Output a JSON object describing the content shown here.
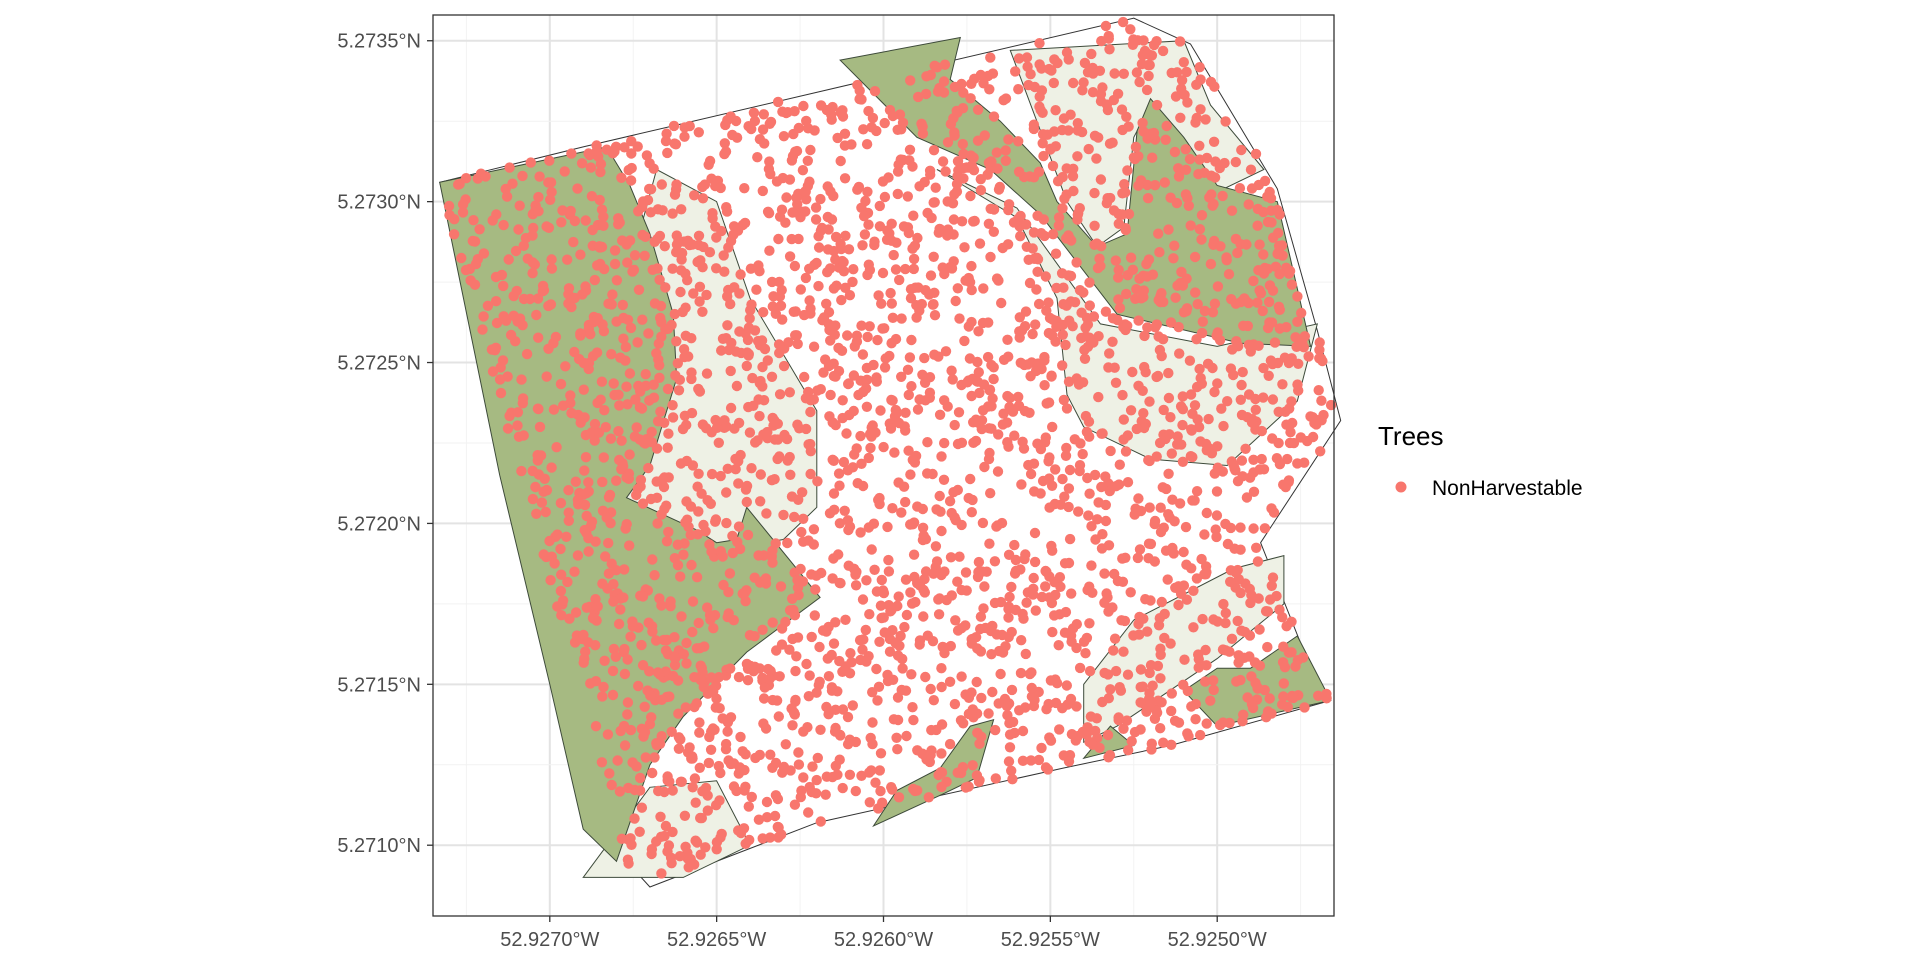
{
  "chart_data": {
    "type": "scatter",
    "title": "",
    "xlabel": "",
    "ylabel": "",
    "xlim": [
      -52.92735,
      -52.92465
    ],
    "ylim": [
      5.27078,
      5.27358
    ],
    "x_ticks": [
      {
        "value": -52.927,
        "label": "52.9270°W"
      },
      {
        "value": -52.9265,
        "label": "52.9265°W"
      },
      {
        "value": -52.926,
        "label": "52.9260°W"
      },
      {
        "value": -52.9255,
        "label": "52.9255°W"
      },
      {
        "value": -52.925,
        "label": "52.9250°W"
      }
    ],
    "y_ticks": [
      {
        "value": 5.271,
        "label": "5.2710°N"
      },
      {
        "value": 5.2715,
        "label": "5.2715°N"
      },
      {
        "value": 5.272,
        "label": "5.2720°N"
      },
      {
        "value": 5.2725,
        "label": "5.2725°N"
      },
      {
        "value": 5.273,
        "label": "5.2730°N"
      },
      {
        "value": 5.2735,
        "label": "5.2735°N"
      }
    ],
    "grid": true,
    "legend": {
      "title": "Trees",
      "position": "right",
      "entries": [
        {
          "label": "NonHarvestable",
          "color": "#F8766D"
        }
      ]
    },
    "series": [
      {
        "name": "NonHarvestable",
        "color": "#F8766D",
        "point_count_estimate": 3000
      }
    ],
    "layers": {
      "plot_outline": [
        [
          -52.92733,
          5.27306
        ],
        [
          -52.9269,
          5.27317
        ],
        [
          -52.92525,
          5.27357
        ],
        [
          -52.92508,
          5.27349
        ],
        [
          -52.92482,
          5.27304
        ],
        [
          -52.9247,
          5.2726
        ],
        [
          -52.92463,
          5.27232
        ],
        [
          -52.92487,
          5.27194
        ],
        [
          -52.92472,
          5.27155
        ],
        [
          -52.92466,
          5.27145
        ],
        [
          -52.92514,
          5.27131
        ],
        [
          -52.92546,
          5.27124
        ],
        [
          -52.9262,
          5.27107
        ],
        [
          -52.9267,
          5.27087
        ],
        [
          -52.92677,
          5.27095
        ]
      ],
      "dense_forest_color": "#A6BA82",
      "light_forest_color": "#EEF1E5",
      "dense_forest_polygons": [
        [
          [
            -52.92733,
            5.27306
          ],
          [
            -52.92683,
            5.27317
          ],
          [
            -52.92676,
            5.27305
          ],
          [
            -52.9267,
            5.2729
          ],
          [
            -52.92663,
            5.27265
          ],
          [
            -52.92662,
            5.27245
          ],
          [
            -52.9267,
            5.27218
          ],
          [
            -52.92677,
            5.27208
          ],
          [
            -52.92656,
            5.27198
          ],
          [
            -52.9265,
            5.27194
          ],
          [
            -52.92644,
            5.27195
          ],
          [
            -52.92641,
            5.27205
          ],
          [
            -52.92619,
            5.27177
          ],
          [
            -52.92641,
            5.2716
          ],
          [
            -52.9266,
            5.2714
          ],
          [
            -52.9267,
            5.27125
          ],
          [
            -52.9268,
            5.27095
          ],
          [
            -52.9269,
            5.27105
          ],
          [
            -52.927,
            5.2715
          ],
          [
            -52.92715,
            5.27215
          ],
          [
            -52.92733,
            5.27306
          ]
        ],
        [
          [
            -52.92613,
            5.27344
          ],
          [
            -52.92577,
            5.27351
          ],
          [
            -52.9258,
            5.27338
          ],
          [
            -52.92565,
            5.27325
          ],
          [
            -52.92553,
            5.27312
          ],
          [
            -52.92548,
            5.273
          ],
          [
            -52.92536,
            5.27286
          ],
          [
            -52.92527,
            5.2729
          ],
          [
            -52.92524,
            5.27322
          ],
          [
            -52.9252,
            5.27332
          ],
          [
            -52.9251,
            5.2732
          ],
          [
            -52.925,
            5.27305
          ],
          [
            -52.92482,
            5.273
          ],
          [
            -52.92472,
            5.27255
          ],
          [
            -52.92493,
            5.27256
          ],
          [
            -52.9253,
            5.27265
          ],
          [
            -52.92553,
            5.27296
          ],
          [
            -52.92568,
            5.2731
          ],
          [
            -52.9259,
            5.2732
          ],
          [
            -52.92613,
            5.27344
          ]
        ],
        [
          [
            -52.92603,
            5.27106
          ],
          [
            -52.92582,
            5.27116
          ],
          [
            -52.92572,
            5.27121
          ],
          [
            -52.92567,
            5.27139
          ],
          [
            -52.92574,
            5.27137
          ],
          [
            -52.92583,
            5.27124
          ],
          [
            -52.92596,
            5.27117
          ],
          [
            -52.92603,
            5.27106
          ]
        ],
        [
          [
            -52.9249,
            5.27155
          ],
          [
            -52.92476,
            5.27165
          ],
          [
            -52.92466,
            5.27145
          ],
          [
            -52.925,
            5.27137
          ],
          [
            -52.9251,
            5.27148
          ],
          [
            -52.925,
            5.27155
          ],
          [
            -52.9249,
            5.27155
          ]
        ],
        [
          [
            -52.9254,
            5.27127
          ],
          [
            -52.92525,
            5.27131
          ],
          [
            -52.92532,
            5.27137
          ],
          [
            -52.9254,
            5.27127
          ]
        ]
      ],
      "light_forest_polygons": [
        [
          [
            -52.92685,
            5.27245
          ],
          [
            -52.92668,
            5.2731
          ],
          [
            -52.9265,
            5.273
          ],
          [
            -52.9264,
            5.2727
          ],
          [
            -52.9262,
            5.27235
          ],
          [
            -52.9262,
            5.27205
          ],
          [
            -52.9263,
            5.27195
          ],
          [
            -52.9266,
            5.2719
          ],
          [
            -52.92677,
            5.27208
          ],
          [
            -52.92685,
            5.27245
          ]
        ],
        [
          [
            -52.92584,
            5.2731
          ],
          [
            -52.9256,
            5.27295
          ],
          [
            -52.92548,
            5.2727
          ],
          [
            -52.92545,
            5.2724
          ],
          [
            -52.9254,
            5.2723
          ],
          [
            -52.9252,
            5.2722
          ],
          [
            -52.92497,
            5.27218
          ],
          [
            -52.92476,
            5.27238
          ],
          [
            -52.9247,
            5.27262
          ],
          [
            -52.925,
            5.27255
          ],
          [
            -52.92535,
            5.27262
          ],
          [
            -52.9256,
            5.27298
          ],
          [
            -52.92584,
            5.2731
          ]
        ],
        [
          [
            -52.92562,
            5.27347
          ],
          [
            -52.9251,
            5.2735
          ],
          [
            -52.92502,
            5.2733
          ],
          [
            -52.92486,
            5.2731
          ],
          [
            -52.925,
            5.27303
          ],
          [
            -52.92512,
            5.2732
          ],
          [
            -52.9252,
            5.2733
          ],
          [
            -52.92525,
            5.2732
          ],
          [
            -52.92528,
            5.27292
          ],
          [
            -52.92536,
            5.27286
          ],
          [
            -52.92545,
            5.273
          ],
          [
            -52.92562,
            5.27347
          ]
        ],
        [
          [
            -52.9248,
            5.2719
          ],
          [
            -52.92495,
            5.27186
          ],
          [
            -52.92525,
            5.2717
          ],
          [
            -52.9254,
            5.2715
          ],
          [
            -52.9254,
            5.27132
          ],
          [
            -52.9253,
            5.27137
          ],
          [
            -52.925,
            5.27158
          ],
          [
            -52.9248,
            5.27175
          ],
          [
            -52.9248,
            5.2719
          ]
        ],
        [
          [
            -52.9269,
            5.2709
          ],
          [
            -52.9267,
            5.27118
          ],
          [
            -52.9265,
            5.2712
          ],
          [
            -52.9264,
            5.271
          ],
          [
            -52.9266,
            5.2709
          ],
          [
            -52.9269,
            5.2709
          ]
        ]
      ]
    }
  }
}
